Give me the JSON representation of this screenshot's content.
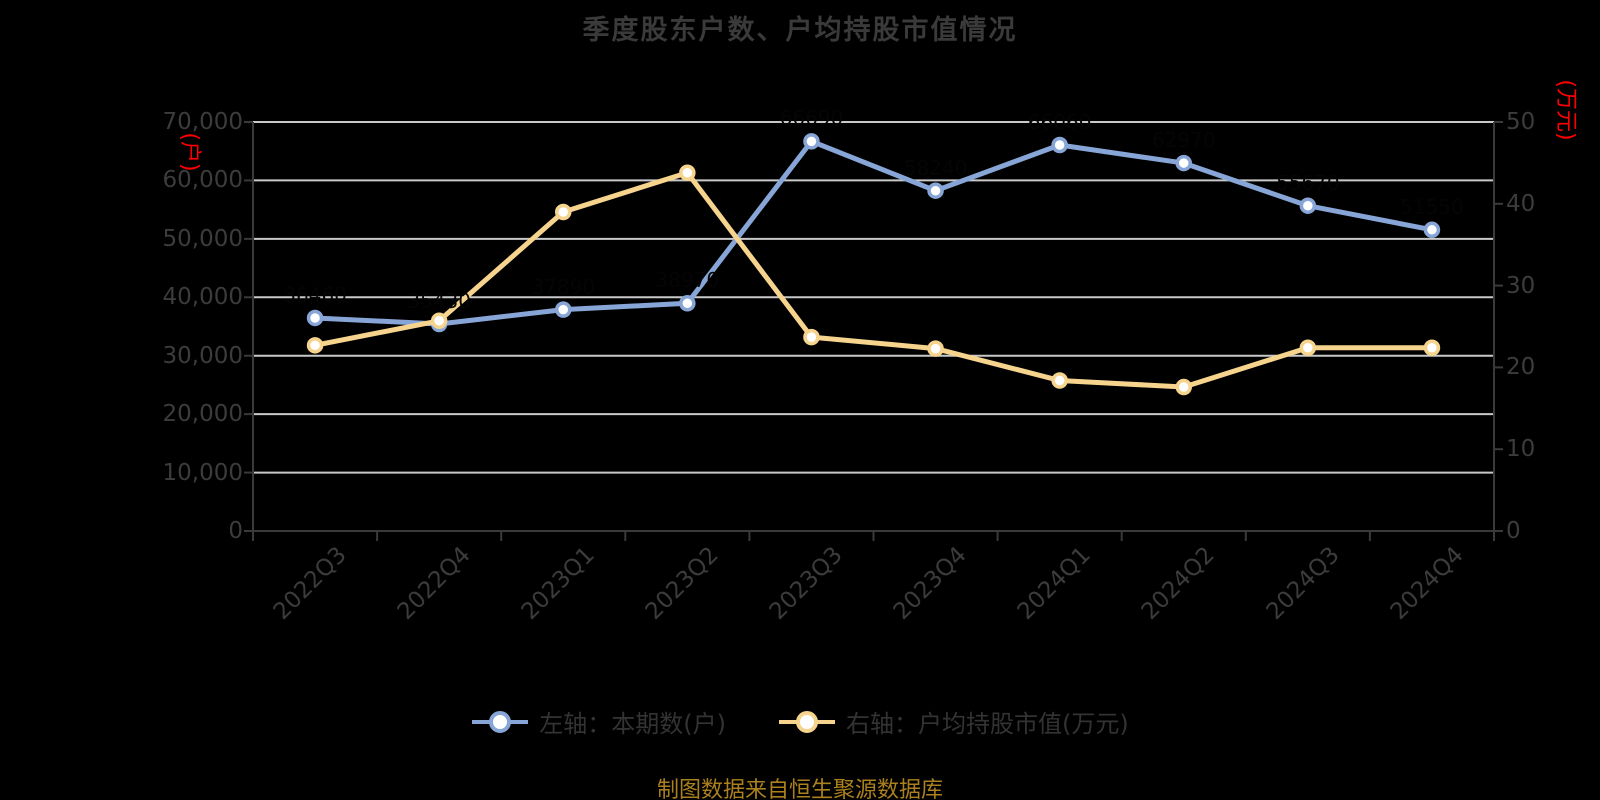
{
  "title": "季度股东户数、户均持股市值情况",
  "caption": "制图数据来自恒生聚源数据库",
  "colors": {
    "background": "#000000",
    "title_text": "#3a3a3a",
    "axis_text": "#3c3c3c",
    "axis_line": "#3a3a3a",
    "grid_line": "#c9c9c9",
    "series_blue": "#87a6d7",
    "series_yellow": "#f6d48e",
    "unit_label_red": "#ff0000",
    "caption_gold": "#ab801e",
    "data_label": "#050505"
  },
  "left_axis": {
    "unit": "(户)",
    "tick_labels": [
      "70,000",
      "60,000",
      "50,000",
      "40,000",
      "30,000",
      "20,000",
      "10,000",
      "0"
    ]
  },
  "right_axis": {
    "unit": "(万元)",
    "tick_labels": [
      "50",
      "40",
      "30",
      "20",
      "10",
      "0"
    ]
  },
  "x_axis": {
    "labels": [
      "2022Q3",
      "2022Q4",
      "2023Q1",
      "2023Q2",
      "2023Q3",
      "2023Q4",
      "2024Q1",
      "2024Q2",
      "2024Q3",
      "2024Q4"
    ]
  },
  "legend": {
    "items": [
      {
        "label": "左轴：本期数(户)",
        "color": "#87a6d7"
      },
      {
        "label": "右轴：户均持股市值(万元)",
        "color": "#f6d48e"
      }
    ]
  },
  "chart_data": {
    "type": "line",
    "categories": [
      "2022Q3",
      "2022Q4",
      "2023Q1",
      "2023Q2",
      "2023Q3",
      "2023Q4",
      "2024Q1",
      "2024Q2",
      "2024Q3",
      "2024Q4"
    ],
    "series": [
      {
        "name": "左轴：本期数(户)",
        "axis": "left",
        "color": "#87a6d7",
        "marker": "circle",
        "show_labels": true,
        "values": [
          36460,
          35430,
          37890,
          38970,
          66690,
          58240,
          66060,
          62970,
          55670,
          51550
        ]
      },
      {
        "name": "右轴：户均持股市值(万元)",
        "axis": "right",
        "color": "#f6d48e",
        "marker": "circle",
        "show_labels": false,
        "values": [
          22.7,
          25.7,
          39.0,
          43.8,
          23.7,
          22.3,
          18.4,
          17.6,
          22.4,
          22.4
        ]
      }
    ],
    "left_ylim": [
      0,
      70000
    ],
    "right_ylim": [
      0,
      50
    ],
    "grid": true,
    "legend_position": "bottom"
  }
}
